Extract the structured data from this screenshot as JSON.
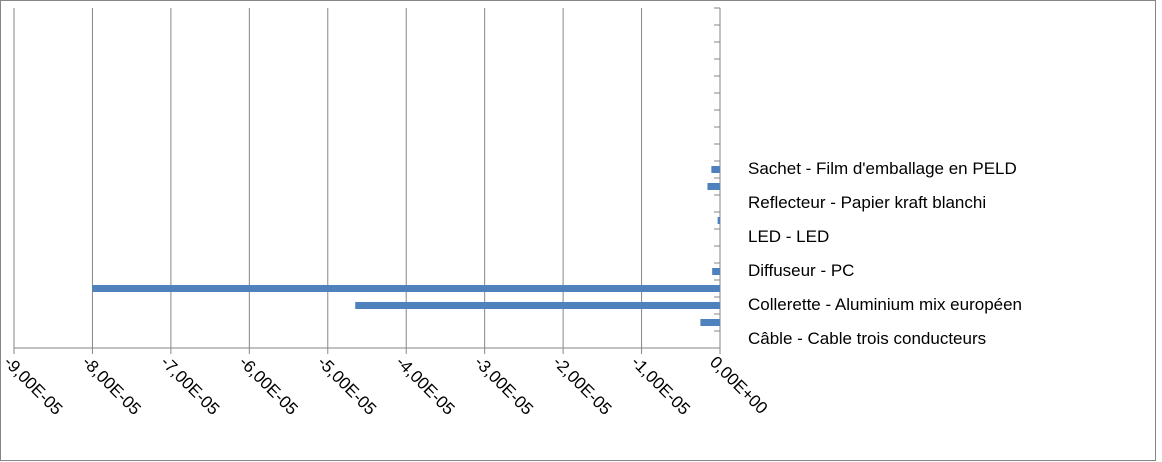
{
  "chart_data": {
    "type": "hbar",
    "color": "#4f81bd",
    "categories": [
      "Câble - Cable trois conducteurs",
      null,
      "Collerette - Aluminium mix européen",
      null,
      "Diffuseur - PC",
      null,
      "LED - LED",
      null,
      "Reflecteur - Papier kraft blanchi",
      null,
      "Sachet - Film d'emballage en PELD",
      null,
      null,
      null,
      null,
      null,
      null,
      null,
      null,
      null
    ],
    "values": [
      0,
      -2.5e-06,
      -4.65e-05,
      -8e-05,
      -1e-06,
      0,
      0,
      -3e-07,
      0,
      -1.6e-06,
      -1.1e-06,
      0,
      0,
      0,
      0,
      0,
      0,
      0,
      0,
      0
    ],
    "xlim": [
      -9e-05,
      0
    ],
    "xticks": [
      {
        "value": -9e-05,
        "label": "-9,00E-05"
      },
      {
        "value": -8e-05,
        "label": "-8,00E-05"
      },
      {
        "value": -7e-05,
        "label": "-7,00E-05"
      },
      {
        "value": -6e-05,
        "label": "-6,00E-05"
      },
      {
        "value": -5e-05,
        "label": "-5,00E-05"
      },
      {
        "value": -4e-05,
        "label": "-4,00E-05"
      },
      {
        "value": -3e-05,
        "label": "-3,00E-05"
      },
      {
        "value": -2e-05,
        "label": "-2,00E-05"
      },
      {
        "value": -1e-05,
        "label": "-1,00E-05"
      },
      {
        "value": 0,
        "label": "0,00E+00"
      }
    ],
    "grid": true
  }
}
